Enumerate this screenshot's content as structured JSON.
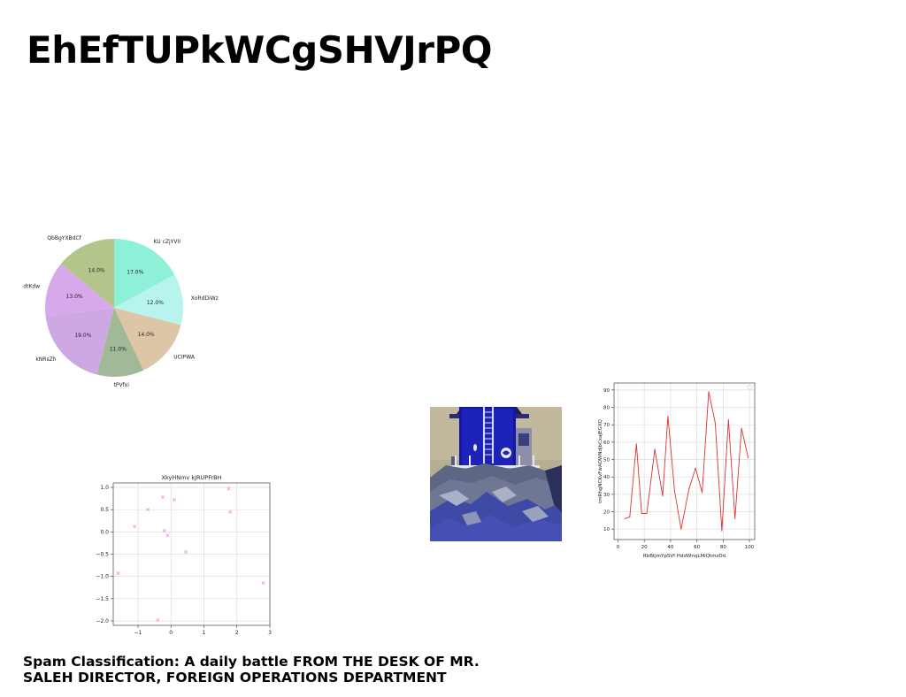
{
  "slide": {
    "title": "EhEfTUPkWCgSHVJrPQ",
    "footer_text": "Spam Classification: A daily battle FROM THE DESK OF MR. SALEH DIRECTOR, FOREIGN OPERATIONS DEPARTMENT"
  },
  "chart_data": [
    {
      "type": "pie",
      "labels": [
        "KU cZjYVII",
        "XoRdDiWz",
        "UCIPWA",
        "tPVfxi",
        "kNRsZh",
        "dtKdw",
        "QbBgYXBdCf"
      ],
      "values": [
        17.0,
        12.0,
        14.0,
        11.0,
        19.0,
        13.0,
        14.0
      ],
      "value_labels": [
        "17.0%",
        "12.0%",
        "14.0%",
        "11.0%",
        "19.0%",
        "13.0%",
        "14.0%"
      ],
      "colors": [
        "#8ef0d6",
        "#b8f4ee",
        "#ddc6a6",
        "#a1b996",
        "#cda8e2",
        "#d7a8ea",
        "#b4c58c"
      ]
    },
    {
      "type": "scatter",
      "title": "XkyHNmv kJRUPFrBH",
      "x": [
        -1.6,
        -1.1,
        -0.7,
        -0.25,
        -0.2,
        -0.1,
        0.1,
        0.45,
        1.75,
        1.8,
        -0.4,
        2.8
      ],
      "y": [
        -0.93,
        0.12,
        0.5,
        0.78,
        0.03,
        -0.08,
        0.72,
        -0.45,
        0.97,
        0.45,
        -1.98,
        -1.15
      ],
      "xlim": [
        -1.75,
        3.0
      ],
      "ylim": [
        -2.1,
        1.1
      ],
      "xticks": [
        -1,
        0,
        1,
        2,
        3
      ],
      "yticks": [
        1.0,
        0.5,
        0.0,
        -0.5,
        -1.0,
        -1.5,
        -2.0
      ],
      "xtick_labels": [
        "−1",
        "0",
        "1",
        "2",
        "3"
      ],
      "ytick_labels": [
        "1.0",
        "0.5",
        "0.0",
        "−0.5",
        "−1.0",
        "−1.5",
        "−2.0"
      ],
      "marker": "x",
      "color": "#f08ce6",
      "grid": true
    },
    {
      "type": "line",
      "xlabel": "RbBtjmYpSVf HddWnqLMiQtmzDd",
      "ylabel": "tmRhgNCKvFwAOWNdjbCxaJEGXQ",
      "x": [
        5,
        9,
        14,
        18,
        22,
        28,
        34,
        38,
        43,
        48,
        54,
        59,
        64,
        69,
        74,
        79,
        84,
        89,
        94,
        99
      ],
      "y": [
        16,
        17,
        59,
        19,
        19,
        56,
        29,
        75,
        32,
        10,
        33,
        45,
        31,
        89,
        71,
        9,
        73,
        16,
        68,
        51
      ],
      "xlim": [
        -3,
        104
      ],
      "ylim": [
        4,
        94
      ],
      "xticks": [
        0,
        20,
        40,
        60,
        80,
        100
      ],
      "yticks": [
        10,
        20,
        30,
        40,
        50,
        60,
        70,
        80,
        90
      ],
      "color": "#e03030",
      "grid": true,
      "legend": "top-right"
    }
  ]
}
